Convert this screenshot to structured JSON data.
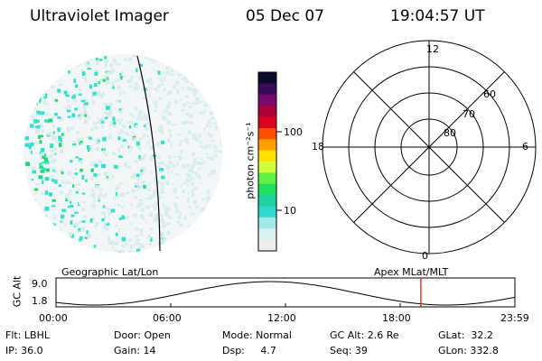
{
  "header": {
    "instrument": "Ultraviolet Imager",
    "date": "05 Dec 07",
    "time": "19:04:57 UT"
  },
  "colorbar": {
    "unit": "photon cm⁻²s⁻¹",
    "ticks": [
      "100",
      "10"
    ],
    "colors": [
      "#0a0a2a",
      "#3a0a5a",
      "#7a0a6a",
      "#b0003a",
      "#e00020",
      "#ff5000",
      "#ffa000",
      "#ffe000",
      "#d0ff40",
      "#60f040",
      "#20e060",
      "#20d0a0",
      "#30d8d0",
      "#a0e8e8",
      "#d8f0f0",
      "#ececec"
    ]
  },
  "polar": {
    "mlt_labels": {
      "top": "12",
      "left": "18",
      "right": "6",
      "bottom": "0"
    },
    "lat_labels": [
      "80",
      "70",
      "60"
    ]
  },
  "timeline": {
    "left_title": "Geographic Lat/Lon",
    "right_title": "Apex MLat/MLT",
    "y_label": "GC Alt",
    "y_ticks": [
      "9.0",
      "1.8"
    ],
    "x_ticks": [
      "00:00",
      "06:00",
      "12:00",
      "18:00",
      "23:59"
    ],
    "current_time_hours": 19.08
  },
  "info": {
    "flt": "Flt: LBHL",
    "ip": "IP: 36.0",
    "door": "Door: Open",
    "gain": "Gain: 14",
    "mode": "Mode: Normal",
    "dsp": "Dsp:     4.7",
    "gcalt": "GC Alt: 2.6 Re",
    "seq": "Seq: 39",
    "glat": "GLat:  32.2",
    "glon": "GLon: 332.8"
  },
  "colors": {
    "cyan": "#30e0c8",
    "green": "#20d870",
    "pale": "#d8ecec",
    "marker": "#ff0000"
  }
}
